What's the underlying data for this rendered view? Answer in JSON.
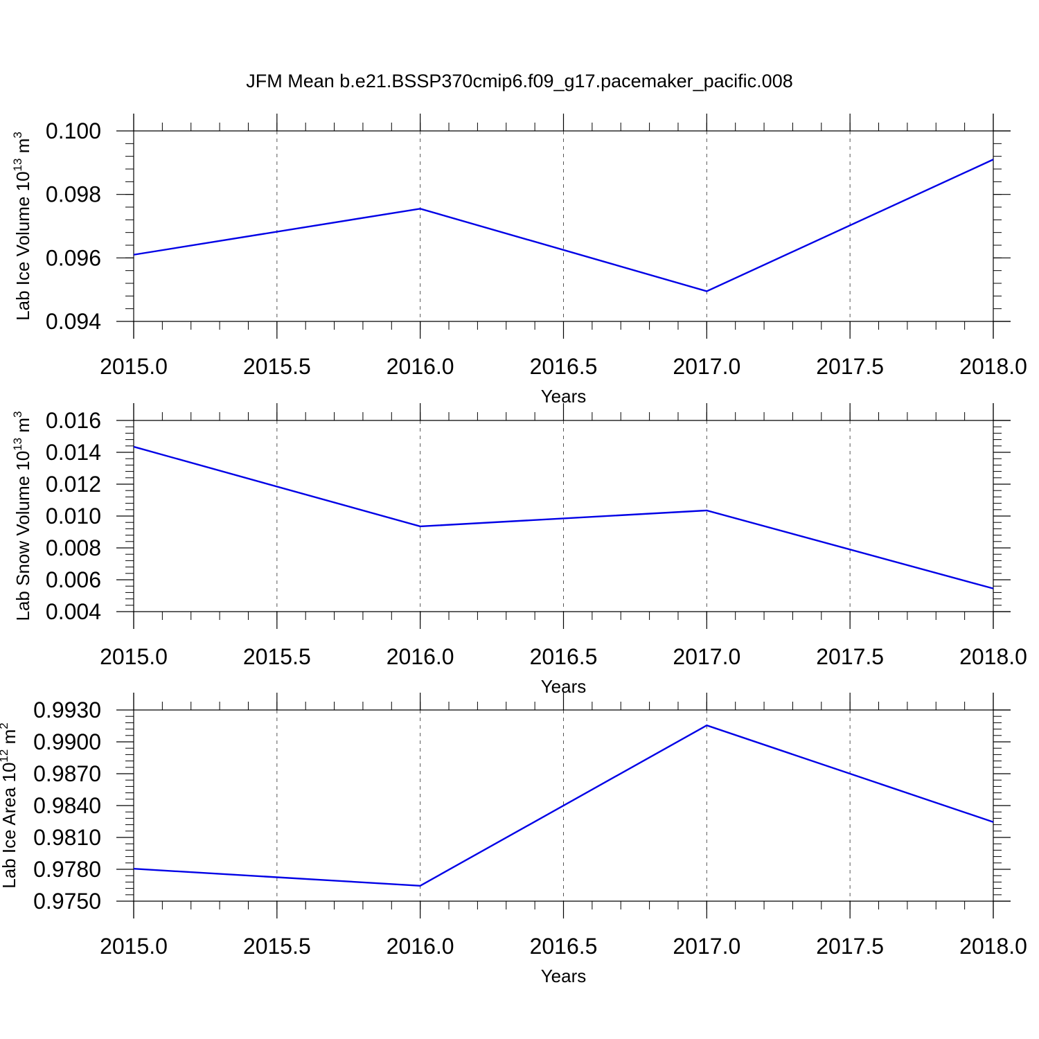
{
  "title": "JFM Mean b.e21.BSSP370cmip6.f09_g17.pacemaker_pacific.008",
  "chart_data": [
    {
      "type": "line",
      "xlabel": "Years",
      "ylabel": "Lab Ice Volume 10",
      "ylabel_sup": "13",
      "ylabel_unit": " m",
      "ylabel_unit_sup": "3",
      "xlim": [
        2015.0,
        2018.0
      ],
      "ylim": [
        0.094,
        0.1
      ],
      "xticks": [
        2015.0,
        2015.5,
        2016.0,
        2016.5,
        2017.0,
        2017.5,
        2018.0
      ],
      "xtick_labels": [
        "2015.0",
        "2015.5",
        "2016.0",
        "2016.5",
        "2017.0",
        "2017.5",
        "2018.0"
      ],
      "yticks": [
        0.094,
        0.096,
        0.098,
        0.1
      ],
      "ytick_labels": [
        "0.094",
        "0.096",
        "0.098",
        "0.100"
      ],
      "grid": "vertical dashed at x ticks",
      "color": "#0000e6",
      "x": [
        2015,
        2016,
        2017,
        2018
      ],
      "values": [
        0.0961,
        0.09755,
        0.09495,
        0.0991
      ]
    },
    {
      "type": "line",
      "xlabel": "Years",
      "ylabel": "Lab Snow Volume 10",
      "ylabel_sup": "13",
      "ylabel_unit": " m",
      "ylabel_unit_sup": "3",
      "xlim": [
        2015.0,
        2018.0
      ],
      "ylim": [
        0.004,
        0.016
      ],
      "xticks": [
        2015.0,
        2015.5,
        2016.0,
        2016.5,
        2017.0,
        2017.5,
        2018.0
      ],
      "xtick_labels": [
        "2015.0",
        "2015.5",
        "2016.0",
        "2016.5",
        "2017.0",
        "2017.5",
        "2018.0"
      ],
      "yticks": [
        0.004,
        0.006,
        0.008,
        0.01,
        0.012,
        0.014,
        0.016
      ],
      "ytick_labels": [
        "0.004",
        "0.006",
        "0.008",
        "0.010",
        "0.012",
        "0.014",
        "0.016"
      ],
      "grid": "vertical dashed at x ticks",
      "color": "#0000e6",
      "x": [
        2015,
        2016,
        2017,
        2018
      ],
      "values": [
        0.01435,
        0.00935,
        0.01035,
        0.00545
      ]
    },
    {
      "type": "line",
      "xlabel": "Years",
      "ylabel": "Lab Ice Area 10",
      "ylabel_sup": "12",
      "ylabel_unit": " m",
      "ylabel_unit_sup": "2",
      "xlim": [
        2015.0,
        2018.0
      ],
      "ylim": [
        0.975,
        0.993
      ],
      "xticks": [
        2015.0,
        2015.5,
        2016.0,
        2016.5,
        2017.0,
        2017.5,
        2018.0
      ],
      "xtick_labels": [
        "2015.0",
        "2015.5",
        "2016.0",
        "2016.5",
        "2017.0",
        "2017.5",
        "2018.0"
      ],
      "yticks": [
        0.975,
        0.978,
        0.981,
        0.984,
        0.987,
        0.99,
        0.993
      ],
      "ytick_labels": [
        "0.9750",
        "0.9780",
        "0.9810",
        "0.9840",
        "0.9870",
        "0.9900",
        "0.9930"
      ],
      "grid": "vertical dashed at x ticks",
      "color": "#0000e6",
      "x": [
        2015,
        2016,
        2017,
        2018
      ],
      "values": [
        0.97805,
        0.97645,
        0.99155,
        0.98245
      ]
    }
  ]
}
